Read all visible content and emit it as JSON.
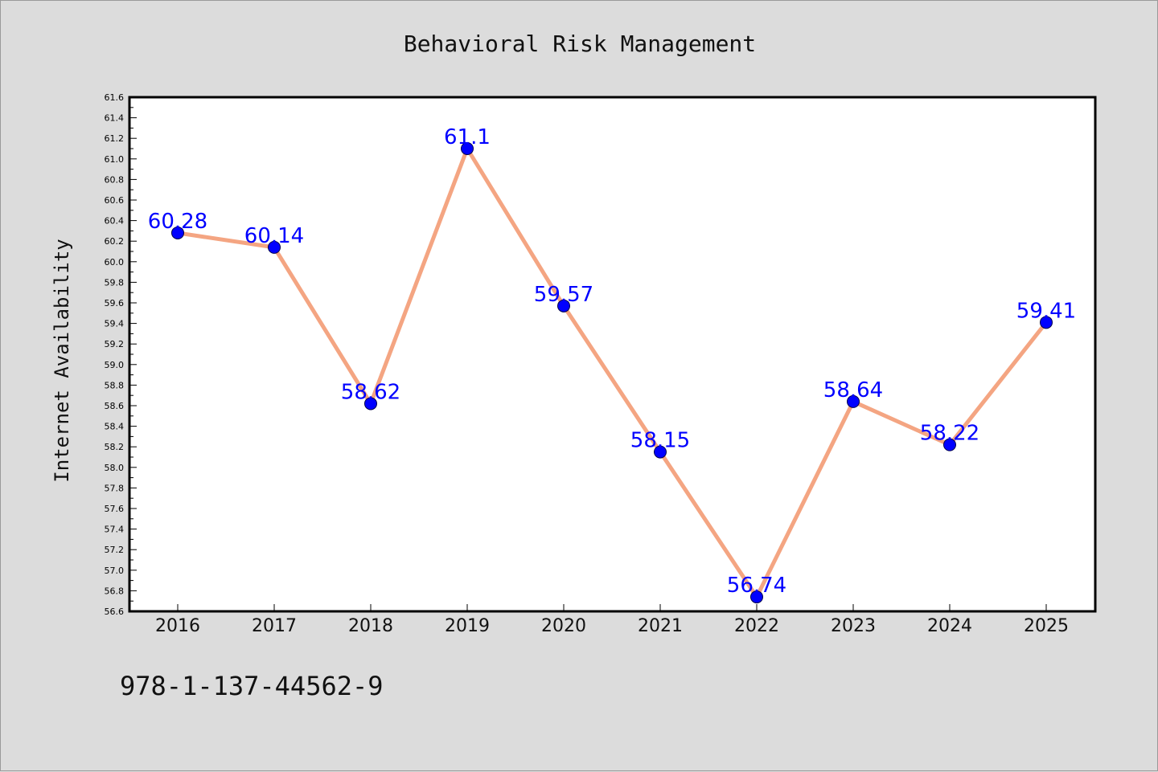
{
  "chart_data": {
    "type": "line",
    "title": "Behavioral Risk Management",
    "xlabel": "",
    "ylabel": "Internet Availability",
    "categories": [
      "2016",
      "2017",
      "2018",
      "2019",
      "2020",
      "2021",
      "2022",
      "2023",
      "2024",
      "2025"
    ],
    "series": [
      {
        "values": [
          60.28,
          60.14,
          58.62,
          61.1,
          59.57,
          58.15,
          56.74,
          58.64,
          58.22,
          59.41
        ],
        "labels": [
          "60.28",
          "60.14",
          "58.62",
          "61.1",
          "59.57",
          "58.15",
          "56.74",
          "58.64",
          "58.22",
          "59.41"
        ],
        "line_color": "#f4a582",
        "marker_color": "#0000ff"
      }
    ],
    "ylim": [
      56.6,
      61.6
    ],
    "yticks": [
      "56.6",
      "56.8",
      "57.0",
      "57.2",
      "57.4",
      "57.6",
      "57.8",
      "58.0",
      "58.2",
      "58.4",
      "58.6",
      "58.8",
      "59.0",
      "59.2",
      "59.4",
      "59.6",
      "59.8",
      "60.0",
      "60.2",
      "60.4",
      "60.6",
      "60.8",
      "61.0",
      "61.2",
      "61.4",
      "61.6"
    ],
    "grid": false,
    "legend": "none"
  },
  "footer": {
    "isbn": "978-1-137-44562-9"
  },
  "colors": {
    "background": "#dcdcdc",
    "plot_background": "#ffffff",
    "data_label": "#0000ff"
  }
}
